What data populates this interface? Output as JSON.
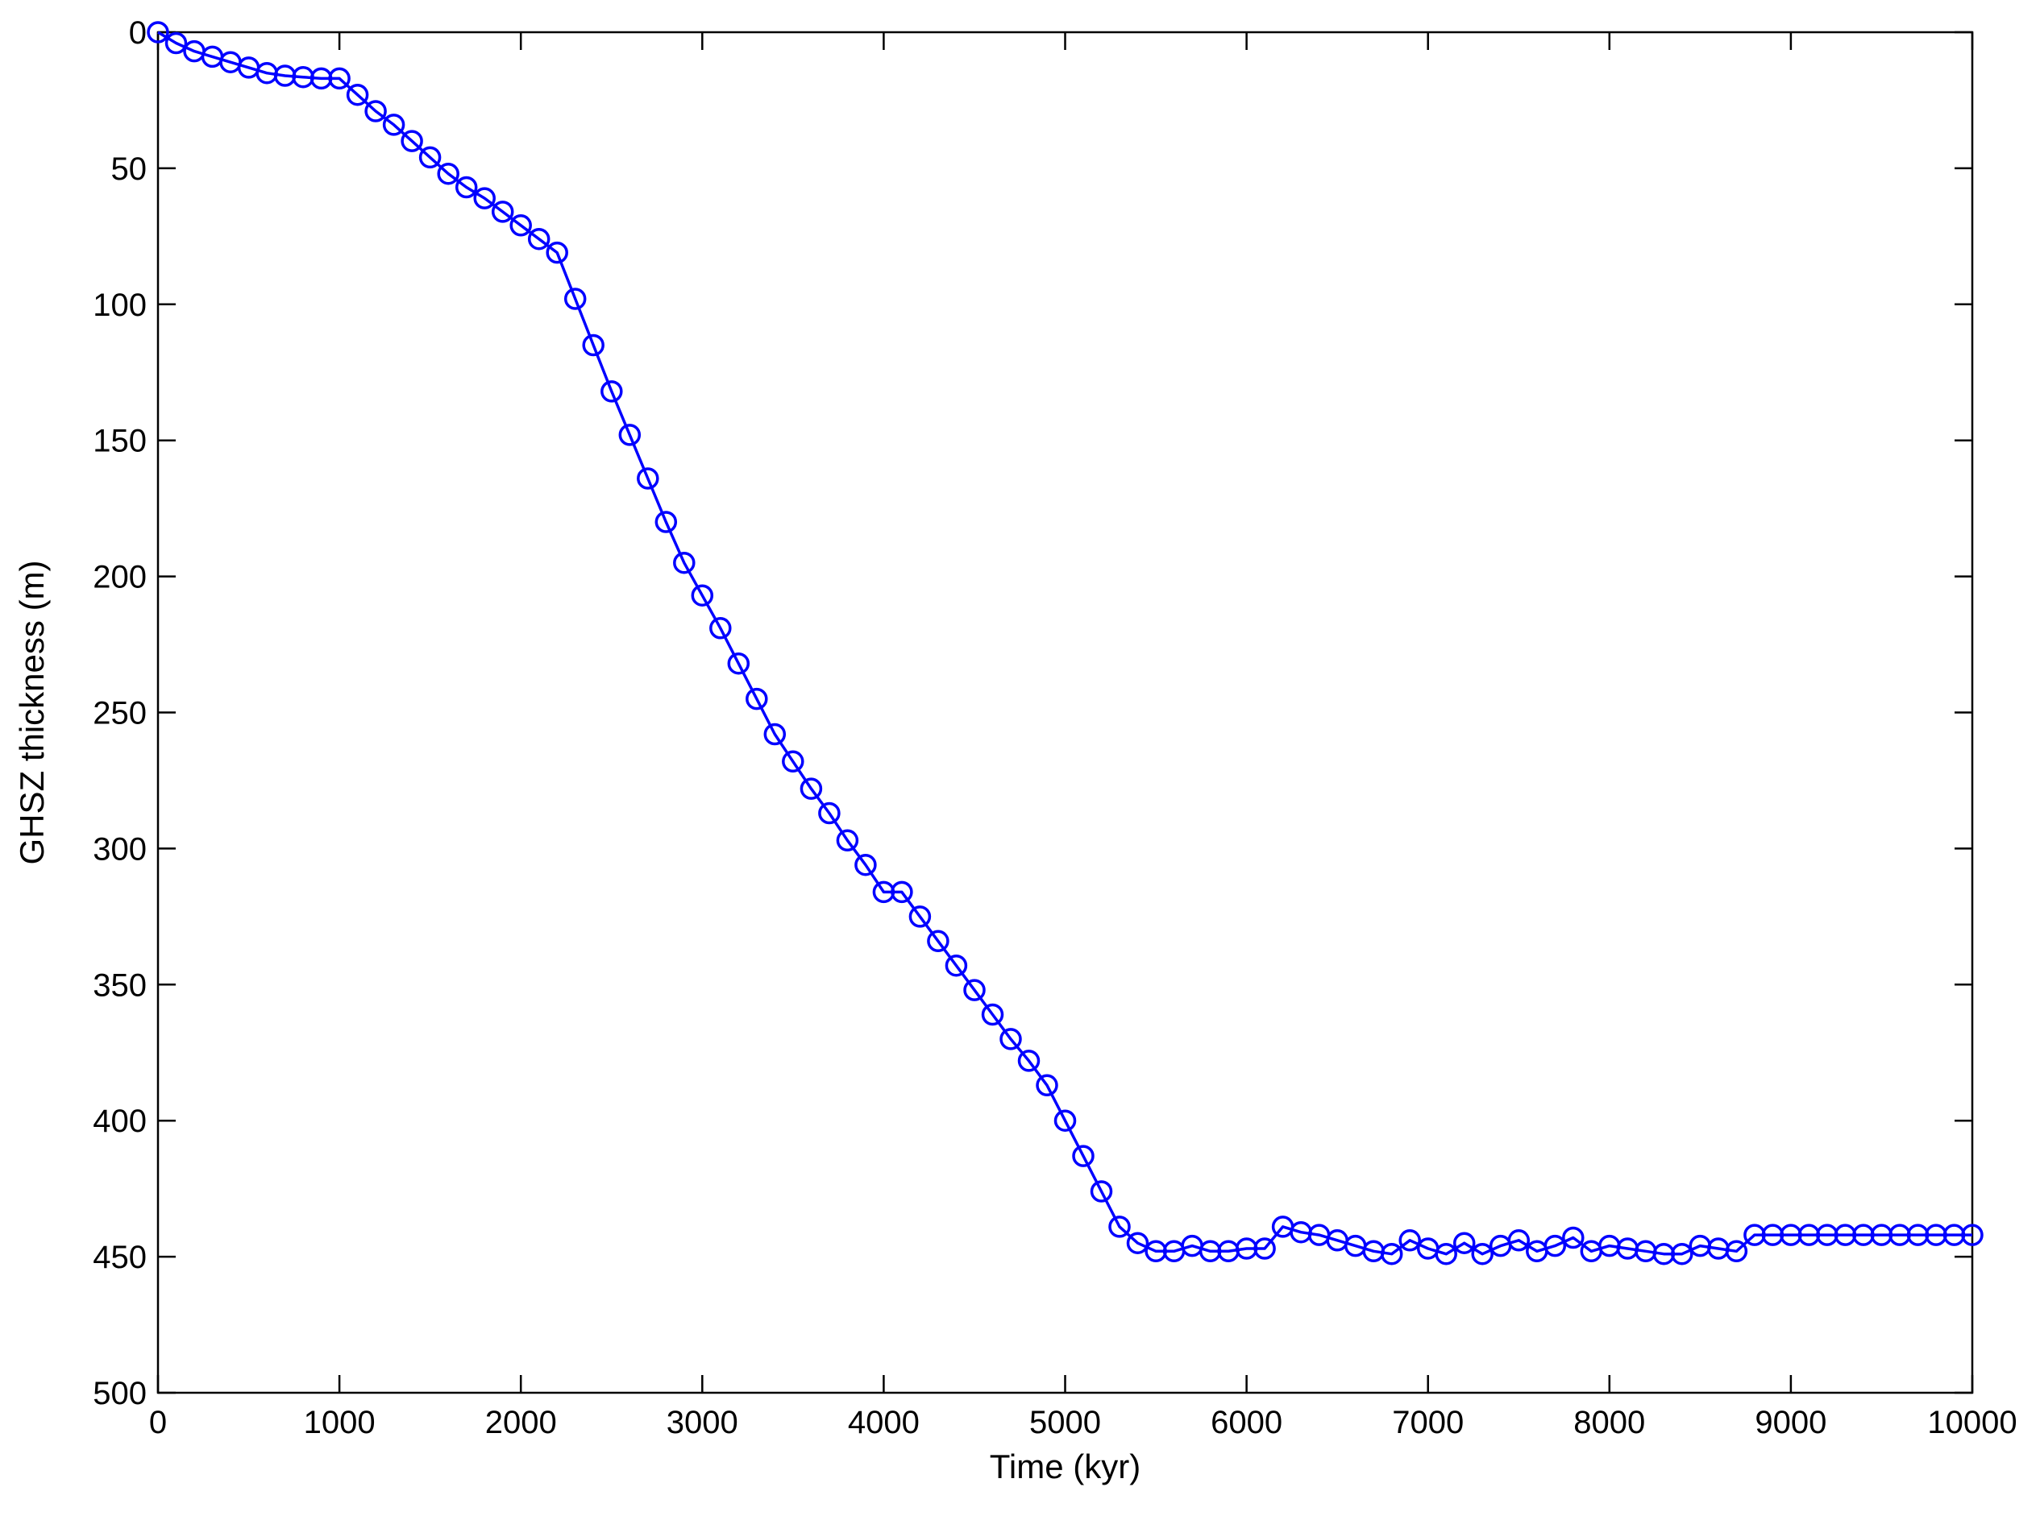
{
  "chart_data": {
    "type": "line",
    "title": "",
    "xlabel": "Time (kyr)",
    "ylabel": "GHSZ thickness (m)",
    "xlim": [
      0,
      10000
    ],
    "ylim": [
      0,
      500
    ],
    "y_reversed": true,
    "grid": false,
    "legend": "none",
    "x_ticks": [
      0,
      1000,
      2000,
      3000,
      4000,
      5000,
      6000,
      7000,
      8000,
      9000,
      10000
    ],
    "y_ticks": [
      0,
      50,
      100,
      150,
      200,
      250,
      300,
      350,
      400,
      450,
      500
    ],
    "x_tick_labels": [
      "0",
      "1000",
      "2000",
      "3000",
      "4000",
      "5000",
      "6000",
      "7000",
      "8000",
      "9000",
      "10000"
    ],
    "y_tick_labels": [
      "0",
      "50",
      "100",
      "150",
      "200",
      "250",
      "300",
      "350",
      "400",
      "450",
      "500"
    ],
    "series": [
      {
        "color": "#0000ff",
        "marker": "circle-open",
        "x": [
          0,
          100,
          200,
          300,
          400,
          500,
          600,
          700,
          800,
          900,
          1000,
          1100,
          1200,
          1300,
          1400,
          1500,
          1600,
          1700,
          1800,
          1900,
          2000,
          2100,
          2200,
          2300,
          2400,
          2500,
          2600,
          2700,
          2800,
          2900,
          3000,
          3100,
          3200,
          3300,
          3400,
          3500,
          3600,
          3700,
          3800,
          3900,
          4000,
          4100,
          4200,
          4300,
          4400,
          4500,
          4600,
          4700,
          4800,
          4900,
          5000,
          5100,
          5200,
          5300,
          5400,
          5500,
          5600,
          5700,
          5800,
          5900,
          6000,
          6100,
          6200,
          6300,
          6400,
          6500,
          6600,
          6700,
          6800,
          6900,
          7000,
          7100,
          7200,
          7300,
          7400,
          7500,
          7600,
          7700,
          7800,
          7900,
          8000,
          8100,
          8200,
          8300,
          8400,
          8500,
          8600,
          8700,
          8800,
          8900,
          9000,
          9100,
          9200,
          9300,
          9400,
          9500,
          9600,
          9700,
          9800,
          9900,
          10000
        ],
        "y": [
          0,
          4,
          7,
          9,
          11,
          13,
          15,
          16,
          16.5,
          17,
          17,
          23,
          29,
          34,
          40,
          46,
          52,
          57,
          61,
          66,
          71,
          76,
          81,
          98,
          115,
          132,
          148,
          164,
          180,
          195,
          207,
          219,
          232,
          245,
          258,
          268,
          278,
          287,
          297,
          306,
          316,
          316,
          325,
          334,
          343,
          352,
          361,
          370,
          378,
          387,
          400,
          413,
          426,
          439,
          445,
          448,
          448,
          446,
          448,
          448,
          447,
          447,
          439,
          441,
          442,
          444,
          446,
          448,
          449,
          444,
          447,
          449,
          445,
          449,
          446,
          444,
          448,
          446,
          443,
          448,
          446,
          447,
          448,
          449,
          449,
          446,
          447,
          448,
          442,
          442,
          442,
          442,
          442,
          442,
          442,
          442,
          442,
          442,
          442,
          442,
          442
        ]
      }
    ]
  }
}
